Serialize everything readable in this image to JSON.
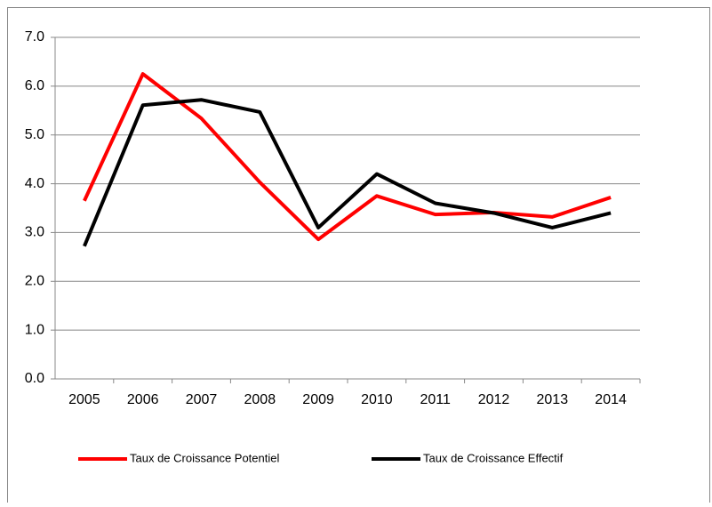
{
  "chart_data": {
    "type": "line",
    "categories": [
      "2005",
      "2006",
      "2007",
      "2008",
      "2009",
      "2010",
      "2011",
      "2012",
      "2013",
      "2014"
    ],
    "series": [
      {
        "name": "Taux de Croissance Potentiel",
        "color": "#ff0000",
        "values": [
          3.65,
          6.25,
          5.34,
          4.03,
          2.86,
          3.75,
          3.37,
          3.41,
          3.32,
          3.72
        ]
      },
      {
        "name": "Taux de Croissance Effectif",
        "color": "#000000",
        "values": [
          2.72,
          5.61,
          5.72,
          5.47,
          3.1,
          4.2,
          3.6,
          3.4,
          3.1,
          3.4
        ]
      }
    ],
    "ylim": [
      0,
      7
    ],
    "yticks": [
      {
        "value": 0,
        "label": "0.0"
      },
      {
        "value": 1,
        "label": "1.0"
      },
      {
        "value": 2,
        "label": "2.0"
      },
      {
        "value": 3,
        "label": "3.0"
      },
      {
        "value": 4,
        "label": "4.0"
      },
      {
        "value": 5,
        "label": "5.0"
      },
      {
        "value": 6,
        "label": "6.0"
      },
      {
        "value": 7,
        "label": "7.0"
      }
    ],
    "grid": true,
    "legend": "bottom"
  }
}
